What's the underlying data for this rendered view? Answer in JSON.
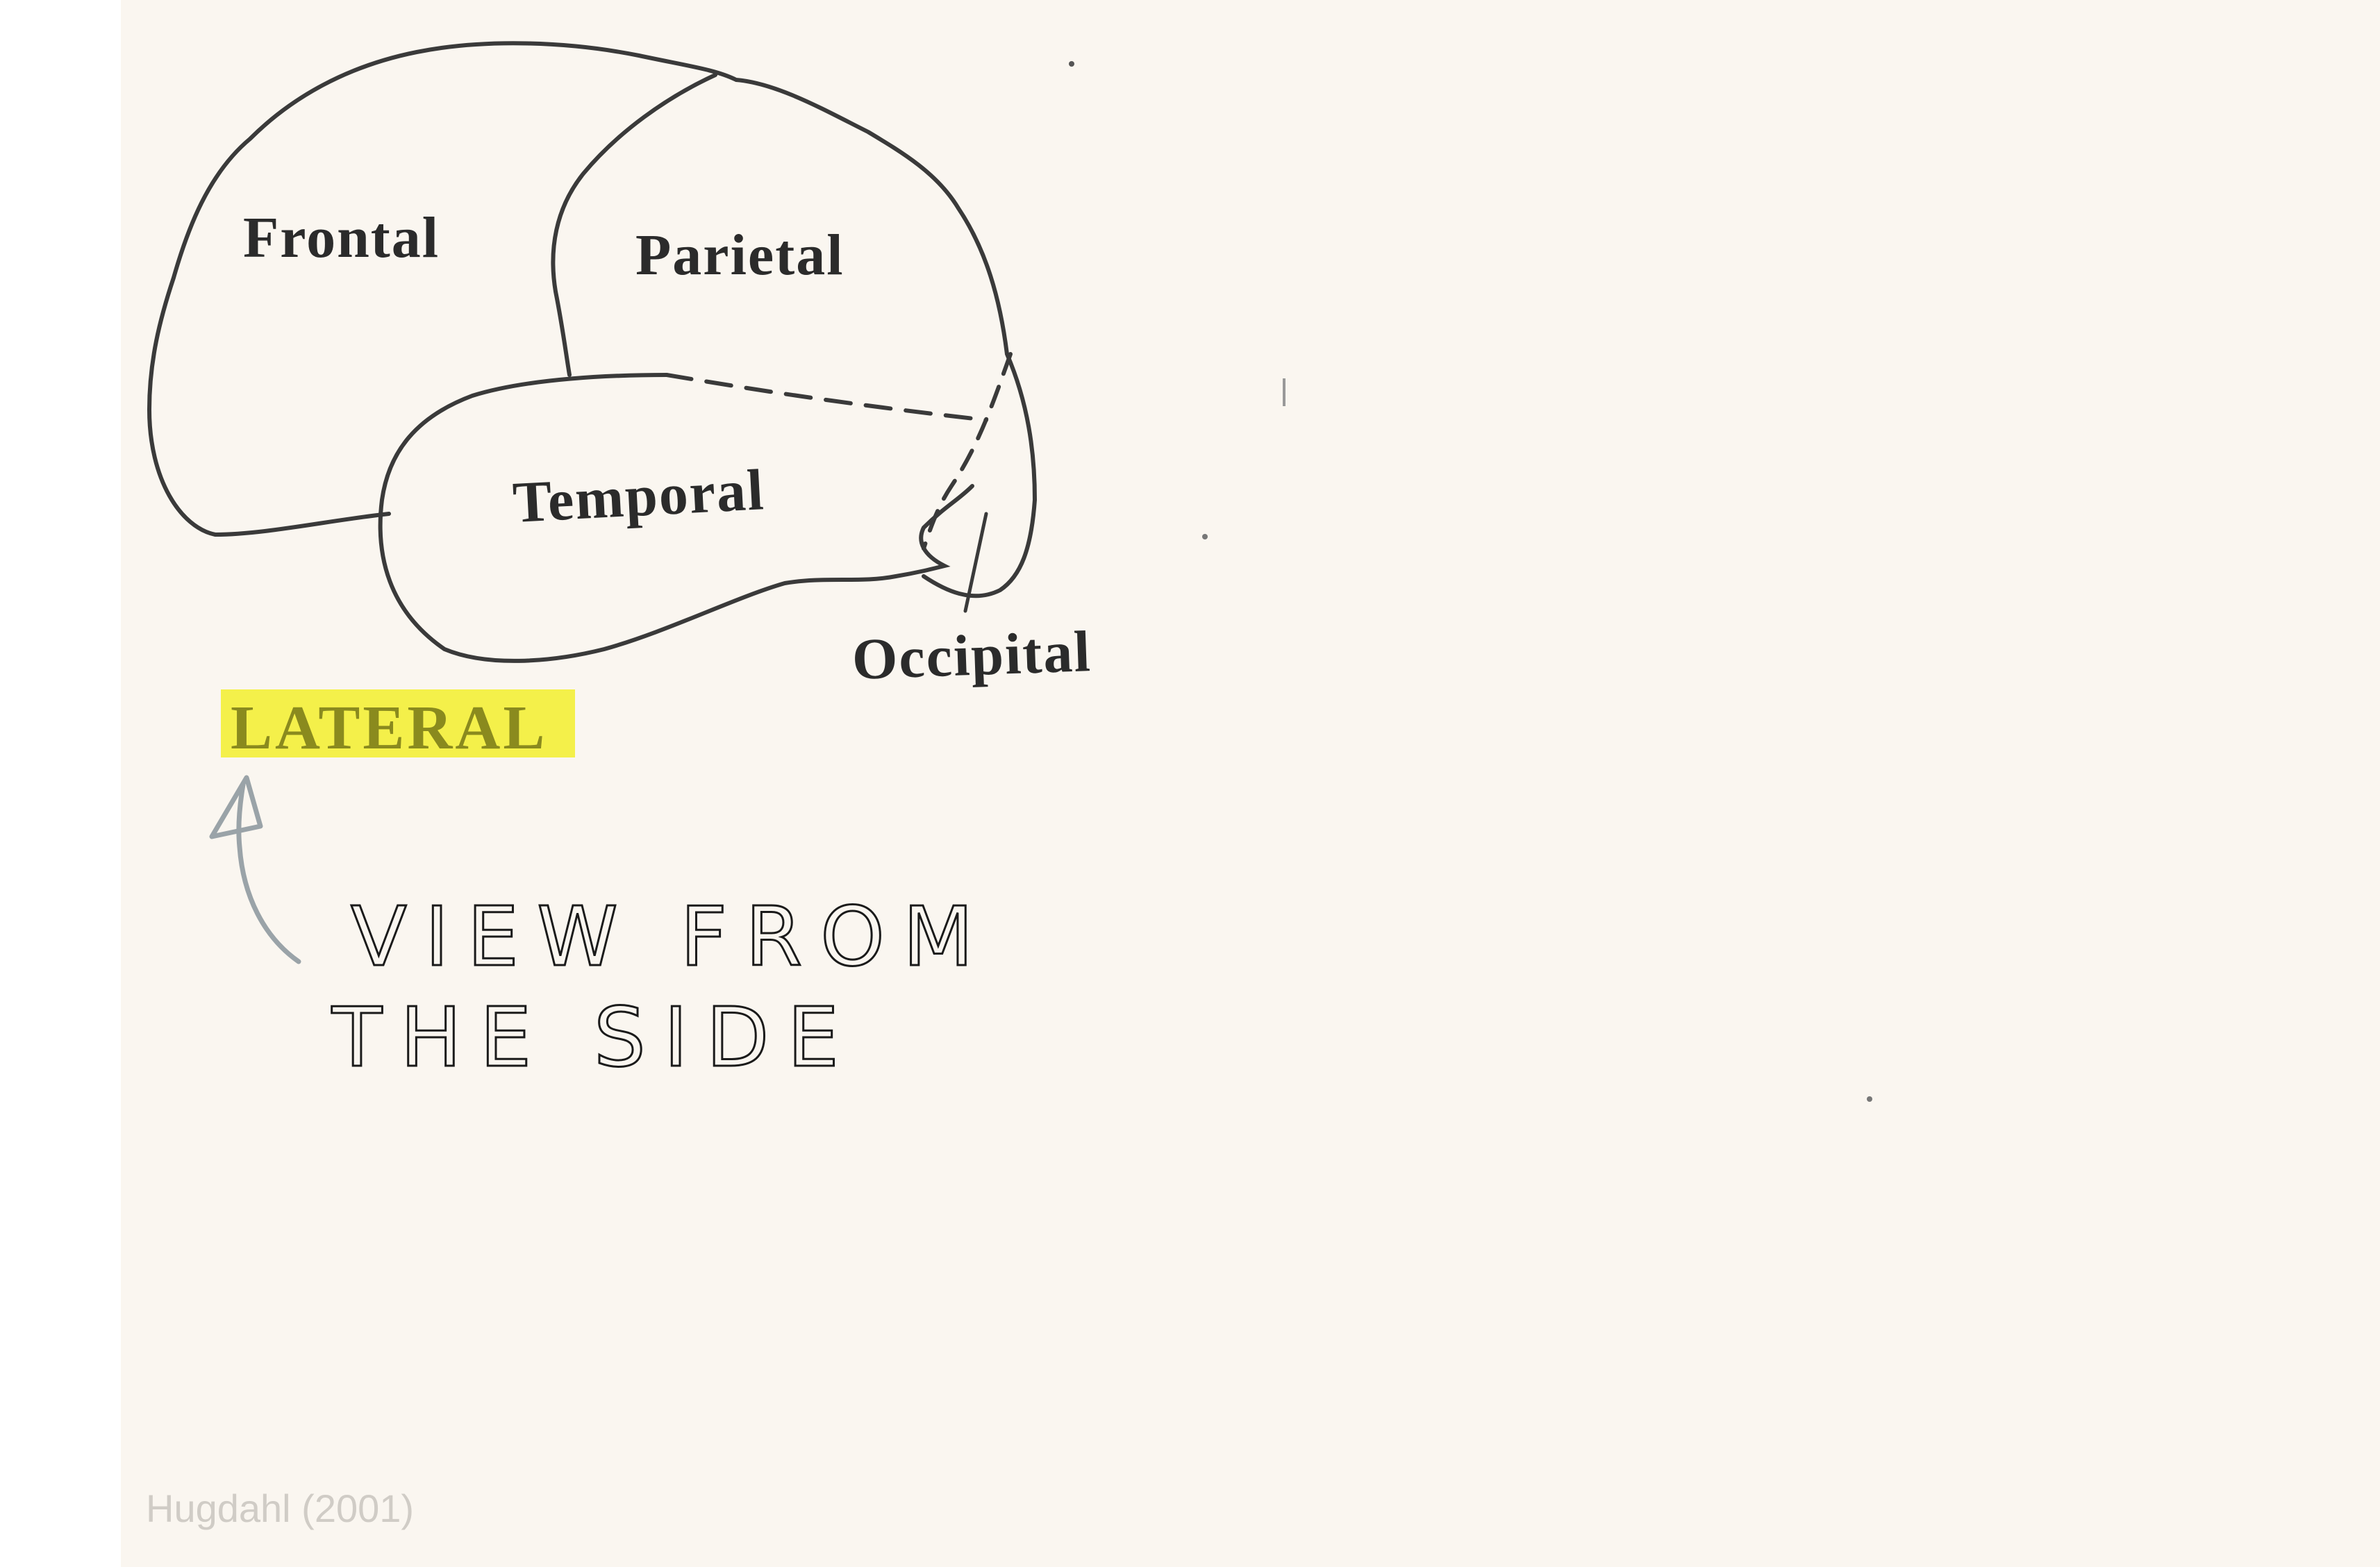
{
  "diagram": {
    "title": "LATERAL",
    "lobes": {
      "frontal": "Frontal",
      "parietal": "Parietal",
      "temporal": "Temporal",
      "occipital": "Occipital"
    },
    "annotation": {
      "line1": "VIEW FROM",
      "line2": "THE SIDE"
    },
    "highlight_color": "#f4f04a",
    "arrow_color": "#9aa3a8"
  },
  "citation": "Hugdahl (2001)"
}
